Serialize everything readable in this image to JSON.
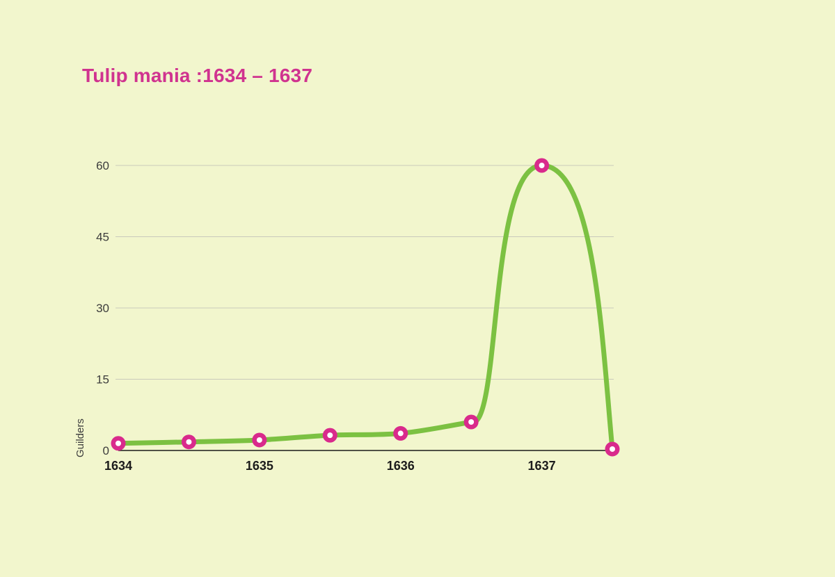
{
  "page": {
    "background": "#f2f6cd"
  },
  "header": {
    "title": "Tulip mania :1634 – 1637",
    "title_color": "#d0338f"
  },
  "chart_data": {
    "type": "line",
    "title": "Tulip mania :1634 – 1637",
    "xlabel": "",
    "ylabel": "Guilders",
    "x": [
      1634,
      1634.5,
      1635,
      1635.5,
      1636,
      1636.5,
      1637,
      1637.5
    ],
    "values": [
      1.5,
      1.8,
      2.2,
      3.2,
      3.6,
      6,
      60,
      0.3
    ],
    "ylim": [
      0,
      60
    ],
    "y_ticks": [
      0,
      15,
      30,
      45,
      60
    ],
    "x_tick_labels": [
      "1634",
      "1635",
      "1636",
      "1637"
    ],
    "grid": "horizontal-only",
    "legend": "none",
    "line_color": "#7cc142",
    "marker_color": "#d92a8c",
    "marker_center_color": "#ffffff",
    "grid_color": "#c9c9bb",
    "axis_color": "#1a1a1a",
    "tick_label_color": "#3d3d3d"
  }
}
